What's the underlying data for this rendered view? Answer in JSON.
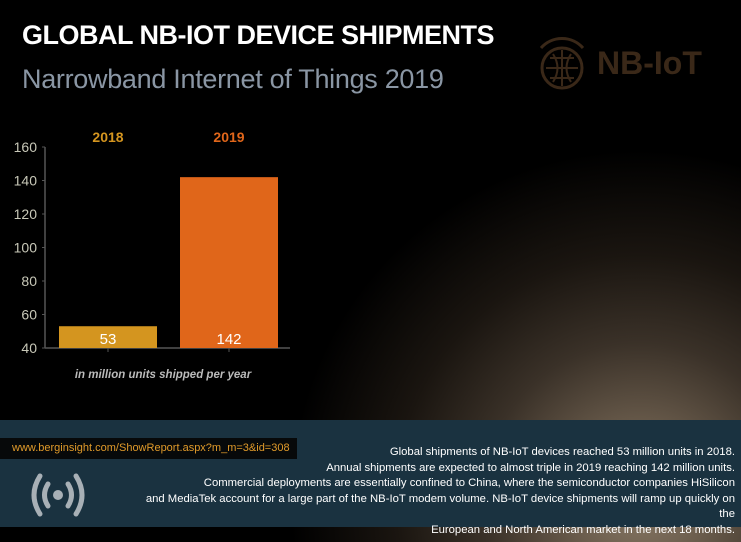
{
  "header": {
    "title": "GLOBAL NB-IOT DEVICE SHIPMENTS",
    "subtitle": "Narrowband Internet of Things 2019",
    "logo_text": "NB-IoT"
  },
  "chart_data": {
    "type": "bar",
    "categories": [
      "2018",
      "2019"
    ],
    "values": [
      53,
      142
    ],
    "data_labels": [
      "53",
      "142"
    ],
    "colors": [
      "#d4951f",
      "#e0661a"
    ],
    "ylim": [
      40,
      160
    ],
    "yticks": [
      40,
      60,
      80,
      100,
      120,
      140,
      160
    ],
    "xlabel": "in million units shipped per year",
    "grid": false
  },
  "footer": {
    "url": "www.berginsight.com/ShowReport.aspx?m_m=3&id=308",
    "lines": [
      "Global shipments of NB-IoT devices reached 53 million units in 2018.",
      "Annual shipments are expected to almost triple in 2019 reaching 142 million units.",
      "Commercial deployments are essentially confined to China, where the semiconductor companies HiSilicon",
      "and MediaTek account for a large part of the NB-IoT modem volume.  NB-IoT device shipments will ramp up quickly on the",
      "European and North American market in the next 18 months."
    ],
    "icon": "broadcast-icon"
  }
}
